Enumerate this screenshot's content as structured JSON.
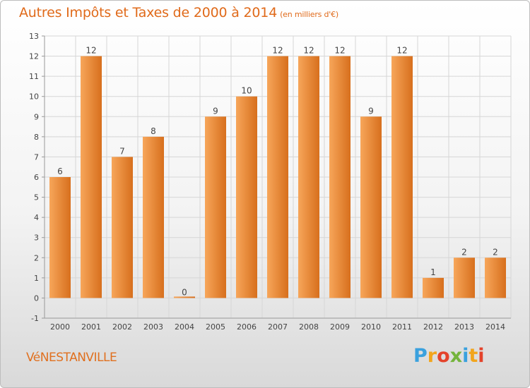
{
  "header": {
    "title": "Autres Impôts et Taxes de 2000 à 2014",
    "unit": "(en milliers d'€)"
  },
  "footer": {
    "city": "VéNESTANVILLE",
    "logo_letters": [
      "P",
      "r",
      "o",
      "x",
      "i",
      "t",
      "i"
    ],
    "logo_colors": [
      "#3aa1de",
      "#f2a51c",
      "#e4432b",
      "#74b43c",
      "#3aa1de",
      "#f2a51c",
      "#e4432b"
    ]
  },
  "colors": {
    "bar_light": "#f7a65a",
    "bar_dark": "#d76f1d",
    "grid": "#d6d6d6",
    "title": "#e06a1a"
  },
  "chart_data": {
    "type": "bar",
    "title": "Autres Impôts et Taxes de 2000 à 2014",
    "subtitle": "(en milliers d'€)",
    "xlabel": "",
    "ylabel": "",
    "categories": [
      "2000",
      "2001",
      "2002",
      "2003",
      "2004",
      "2005",
      "2006",
      "2007",
      "2008",
      "2009",
      "2010",
      "2011",
      "2012",
      "2013",
      "2014"
    ],
    "values": [
      6,
      12,
      7,
      8,
      0,
      9,
      10,
      12,
      12,
      12,
      9,
      12,
      1,
      2,
      2
    ],
    "ylim": [
      -1,
      13
    ],
    "yticks": [
      -1,
      0,
      1,
      2,
      3,
      4,
      5,
      6,
      7,
      8,
      9,
      10,
      11,
      12,
      13
    ],
    "grid": true,
    "legend": "none"
  }
}
